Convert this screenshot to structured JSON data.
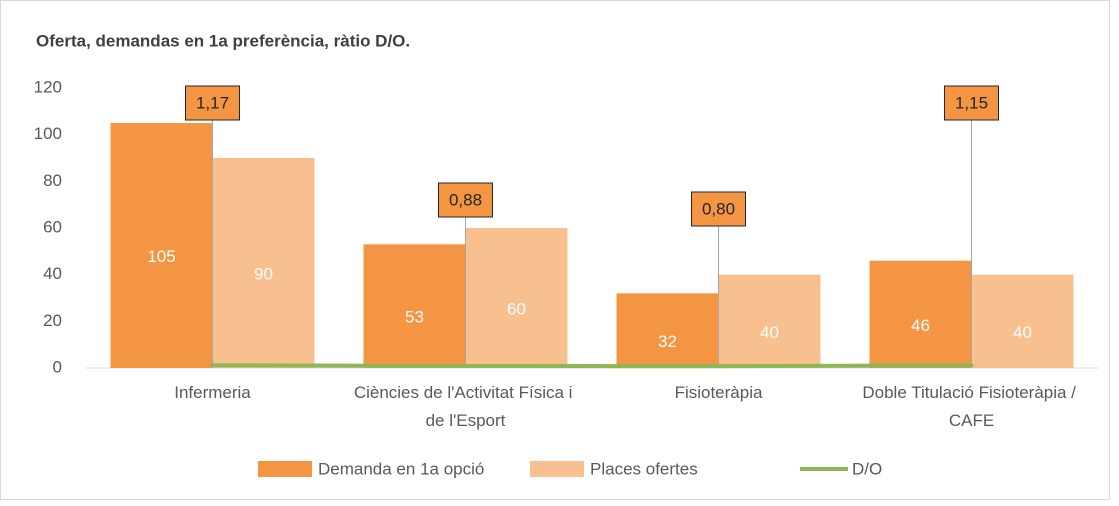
{
  "chart_data": {
    "type": "bar",
    "title": "Oferta, demandas  en 1a preferència,  ràtio D/O.",
    "categories": [
      "Infermeria",
      "Ciències de l'Activitat Física i de l'Esport",
      "Fisioteràpia",
      "Doble Titulació Fisioteràpia / CAFE"
    ],
    "series": [
      {
        "name": "Demanda en 1a opció",
        "color": "#f39543",
        "type": "bar",
        "values": [
          105,
          53,
          32,
          46
        ]
      },
      {
        "name": "Places ofertes",
        "color": "#f8c08f",
        "type": "bar",
        "values": [
          90,
          60,
          40,
          40
        ]
      },
      {
        "name": "D/O",
        "color": "#8db654",
        "type": "line",
        "values": [
          1.17,
          0.88,
          0.8,
          1.15
        ],
        "value_labels": [
          "1,17",
          "0,88",
          "0,80",
          "1,15"
        ]
      }
    ],
    "ylim": [
      0,
      120
    ],
    "yticks": [
      0,
      20,
      40,
      60,
      80,
      100,
      120
    ],
    "grid": false,
    "legend": "bottom"
  }
}
